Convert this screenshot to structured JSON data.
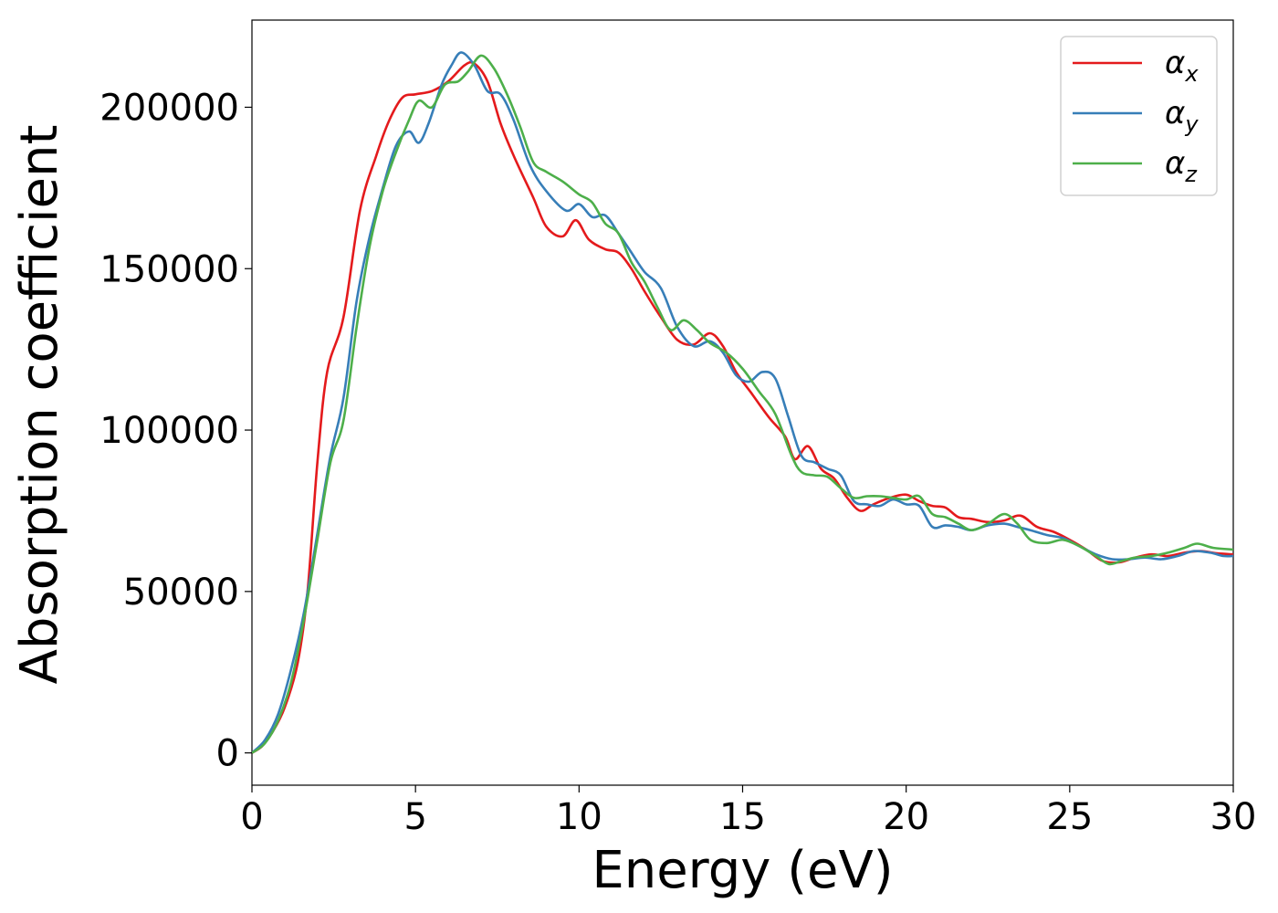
{
  "chart_data": {
    "type": "line",
    "xlabel": "Energy (eV)",
    "ylabel": "Absorption coefficient",
    "xlim": [
      0,
      30
    ],
    "ylim": [
      -10000,
      227000
    ],
    "x_ticks": [
      0,
      5,
      10,
      15,
      20,
      25,
      30
    ],
    "x_tick_labels": [
      "0",
      "5",
      "10",
      "15",
      "20",
      "25",
      "30"
    ],
    "y_ticks": [
      0,
      50000,
      100000,
      150000,
      200000
    ],
    "y_tick_labels": [
      "0",
      "50000",
      "100000",
      "150000",
      "200000"
    ],
    "grid": false,
    "legend_position": "top-right",
    "series": [
      {
        "name": "α",
        "subscript": "x",
        "color": "#e41a1c",
        "points": [
          [
            0,
            0
          ],
          [
            0.3,
            2000
          ],
          [
            0.6,
            6000
          ],
          [
            1.0,
            14000
          ],
          [
            1.4,
            28000
          ],
          [
            1.7,
            50000
          ],
          [
            2.0,
            90000
          ],
          [
            2.3,
            118000
          ],
          [
            2.8,
            135000
          ],
          [
            3.3,
            168000
          ],
          [
            3.8,
            185000
          ],
          [
            4.2,
            196000
          ],
          [
            4.6,
            203000
          ],
          [
            5.0,
            204000
          ],
          [
            5.5,
            205000
          ],
          [
            6.0,
            208000
          ],
          [
            6.5,
            213000
          ],
          [
            6.8,
            213500
          ],
          [
            7.2,
            208000
          ],
          [
            7.6,
            195000
          ],
          [
            8.0,
            185000
          ],
          [
            8.6,
            172000
          ],
          [
            9.0,
            163000
          ],
          [
            9.5,
            160000
          ],
          [
            9.9,
            165000
          ],
          [
            10.3,
            159000
          ],
          [
            10.8,
            156000
          ],
          [
            11.2,
            155000
          ],
          [
            11.6,
            150000
          ],
          [
            12.0,
            143000
          ],
          [
            12.5,
            135000
          ],
          [
            13.0,
            128000
          ],
          [
            13.5,
            126500
          ],
          [
            14.0,
            130000
          ],
          [
            14.4,
            126000
          ],
          [
            14.8,
            118000
          ],
          [
            15.3,
            111000
          ],
          [
            15.8,
            104000
          ],
          [
            16.3,
            98000
          ],
          [
            16.6,
            91000
          ],
          [
            17.0,
            95000
          ],
          [
            17.4,
            88000
          ],
          [
            17.8,
            85000
          ],
          [
            18.2,
            79000
          ],
          [
            18.6,
            75000
          ],
          [
            19.0,
            77000
          ],
          [
            19.5,
            79000
          ],
          [
            20.0,
            80000
          ],
          [
            20.4,
            78000
          ],
          [
            20.8,
            76500
          ],
          [
            21.2,
            76000
          ],
          [
            21.6,
            73000
          ],
          [
            22.0,
            72500
          ],
          [
            22.5,
            71500
          ],
          [
            23.0,
            72000
          ],
          [
            23.5,
            73500
          ],
          [
            24.0,
            70000
          ],
          [
            24.5,
            68500
          ],
          [
            25.0,
            66000
          ],
          [
            25.5,
            63000
          ],
          [
            26.0,
            59500
          ],
          [
            26.5,
            59000
          ],
          [
            27.0,
            60500
          ],
          [
            27.5,
            61500
          ],
          [
            28.0,
            61000
          ],
          [
            28.5,
            62000
          ],
          [
            29.0,
            62500
          ],
          [
            29.5,
            61800
          ],
          [
            30.0,
            61500
          ]
        ]
      },
      {
        "name": "α",
        "subscript": "y",
        "color": "#377eb8",
        "points": [
          [
            0,
            0
          ],
          [
            0.4,
            4000
          ],
          [
            0.8,
            12000
          ],
          [
            1.2,
            26000
          ],
          [
            1.6,
            44000
          ],
          [
            2.0,
            68000
          ],
          [
            2.4,
            92000
          ],
          [
            2.8,
            110000
          ],
          [
            3.2,
            140000
          ],
          [
            3.6,
            160000
          ],
          [
            4.0,
            175000
          ],
          [
            4.4,
            188000
          ],
          [
            4.8,
            192500
          ],
          [
            5.1,
            189000
          ],
          [
            5.4,
            195000
          ],
          [
            5.8,
            207000
          ],
          [
            6.1,
            213000
          ],
          [
            6.4,
            217000
          ],
          [
            6.8,
            213000
          ],
          [
            7.2,
            205000
          ],
          [
            7.6,
            204000
          ],
          [
            8.0,
            196000
          ],
          [
            8.5,
            182000
          ],
          [
            9.0,
            174000
          ],
          [
            9.6,
            168000
          ],
          [
            10.0,
            170000
          ],
          [
            10.4,
            166000
          ],
          [
            10.8,
            166500
          ],
          [
            11.2,
            161000
          ],
          [
            11.6,
            155000
          ],
          [
            12.0,
            149000
          ],
          [
            12.5,
            144000
          ],
          [
            13.0,
            132000
          ],
          [
            13.5,
            126000
          ],
          [
            14.0,
            127500
          ],
          [
            14.4,
            124000
          ],
          [
            14.8,
            117000
          ],
          [
            15.2,
            115000
          ],
          [
            15.6,
            118000
          ],
          [
            16.0,
            116000
          ],
          [
            16.4,
            104000
          ],
          [
            16.8,
            92000
          ],
          [
            17.2,
            90000
          ],
          [
            17.6,
            88000
          ],
          [
            18.0,
            86000
          ],
          [
            18.4,
            78000
          ],
          [
            18.8,
            77000
          ],
          [
            19.2,
            76500
          ],
          [
            19.6,
            78500
          ],
          [
            20.0,
            77000
          ],
          [
            20.4,
            76500
          ],
          [
            20.8,
            70000
          ],
          [
            21.2,
            70500
          ],
          [
            21.6,
            70000
          ],
          [
            22.0,
            69000
          ],
          [
            22.5,
            70500
          ],
          [
            23.0,
            71000
          ],
          [
            23.4,
            70000
          ],
          [
            23.8,
            69000
          ],
          [
            24.3,
            67500
          ],
          [
            24.8,
            66500
          ],
          [
            25.3,
            64000
          ],
          [
            25.8,
            61500
          ],
          [
            26.3,
            60000
          ],
          [
            26.8,
            60000
          ],
          [
            27.3,
            60500
          ],
          [
            27.8,
            60000
          ],
          [
            28.3,
            61000
          ],
          [
            28.8,
            62500
          ],
          [
            29.3,
            62000
          ],
          [
            29.7,
            61000
          ],
          [
            30.0,
            61000
          ]
        ]
      },
      {
        "name": "α",
        "subscript": "z",
        "color": "#4daf4a",
        "points": [
          [
            0,
            0
          ],
          [
            0.4,
            3000
          ],
          [
            0.8,
            10000
          ],
          [
            1.2,
            22000
          ],
          [
            1.6,
            42000
          ],
          [
            2.0,
            66000
          ],
          [
            2.4,
            90000
          ],
          [
            2.8,
            103000
          ],
          [
            3.2,
            132000
          ],
          [
            3.6,
            157000
          ],
          [
            4.0,
            174000
          ],
          [
            4.4,
            186000
          ],
          [
            4.8,
            196000
          ],
          [
            5.1,
            202000
          ],
          [
            5.5,
            200000
          ],
          [
            5.9,
            207000
          ],
          [
            6.3,
            208000
          ],
          [
            6.6,
            211000
          ],
          [
            7.0,
            216000
          ],
          [
            7.4,
            212000
          ],
          [
            7.8,
            204000
          ],
          [
            8.2,
            194000
          ],
          [
            8.6,
            183000
          ],
          [
            9.0,
            180000
          ],
          [
            9.5,
            177000
          ],
          [
            10.0,
            173000
          ],
          [
            10.4,
            170500
          ],
          [
            10.8,
            164000
          ],
          [
            11.2,
            161000
          ],
          [
            11.6,
            152000
          ],
          [
            12.0,
            146000
          ],
          [
            12.4,
            138000
          ],
          [
            12.8,
            131000
          ],
          [
            13.2,
            134000
          ],
          [
            13.6,
            131000
          ],
          [
            14.0,
            127000
          ],
          [
            14.5,
            124000
          ],
          [
            15.0,
            119000
          ],
          [
            15.5,
            112000
          ],
          [
            16.0,
            105000
          ],
          [
            16.5,
            92000
          ],
          [
            16.8,
            87000
          ],
          [
            17.2,
            86000
          ],
          [
            17.6,
            85500
          ],
          [
            18.0,
            82000
          ],
          [
            18.4,
            79000
          ],
          [
            18.8,
            79500
          ],
          [
            19.2,
            79500
          ],
          [
            19.6,
            79000
          ],
          [
            20.0,
            78500
          ],
          [
            20.4,
            79500
          ],
          [
            20.8,
            74000
          ],
          [
            21.2,
            73000
          ],
          [
            21.6,
            71000
          ],
          [
            22.0,
            69000
          ],
          [
            22.5,
            71000
          ],
          [
            23.0,
            74000
          ],
          [
            23.4,
            71000
          ],
          [
            23.8,
            66000
          ],
          [
            24.3,
            65000
          ],
          [
            24.8,
            66000
          ],
          [
            25.3,
            64000
          ],
          [
            25.8,
            61000
          ],
          [
            26.2,
            58500
          ],
          [
            26.6,
            59500
          ],
          [
            27.0,
            60500
          ],
          [
            27.5,
            61000
          ],
          [
            28.0,
            62000
          ],
          [
            28.5,
            63500
          ],
          [
            28.9,
            64800
          ],
          [
            29.4,
            63500
          ],
          [
            30.0,
            63000
          ]
        ]
      }
    ]
  }
}
